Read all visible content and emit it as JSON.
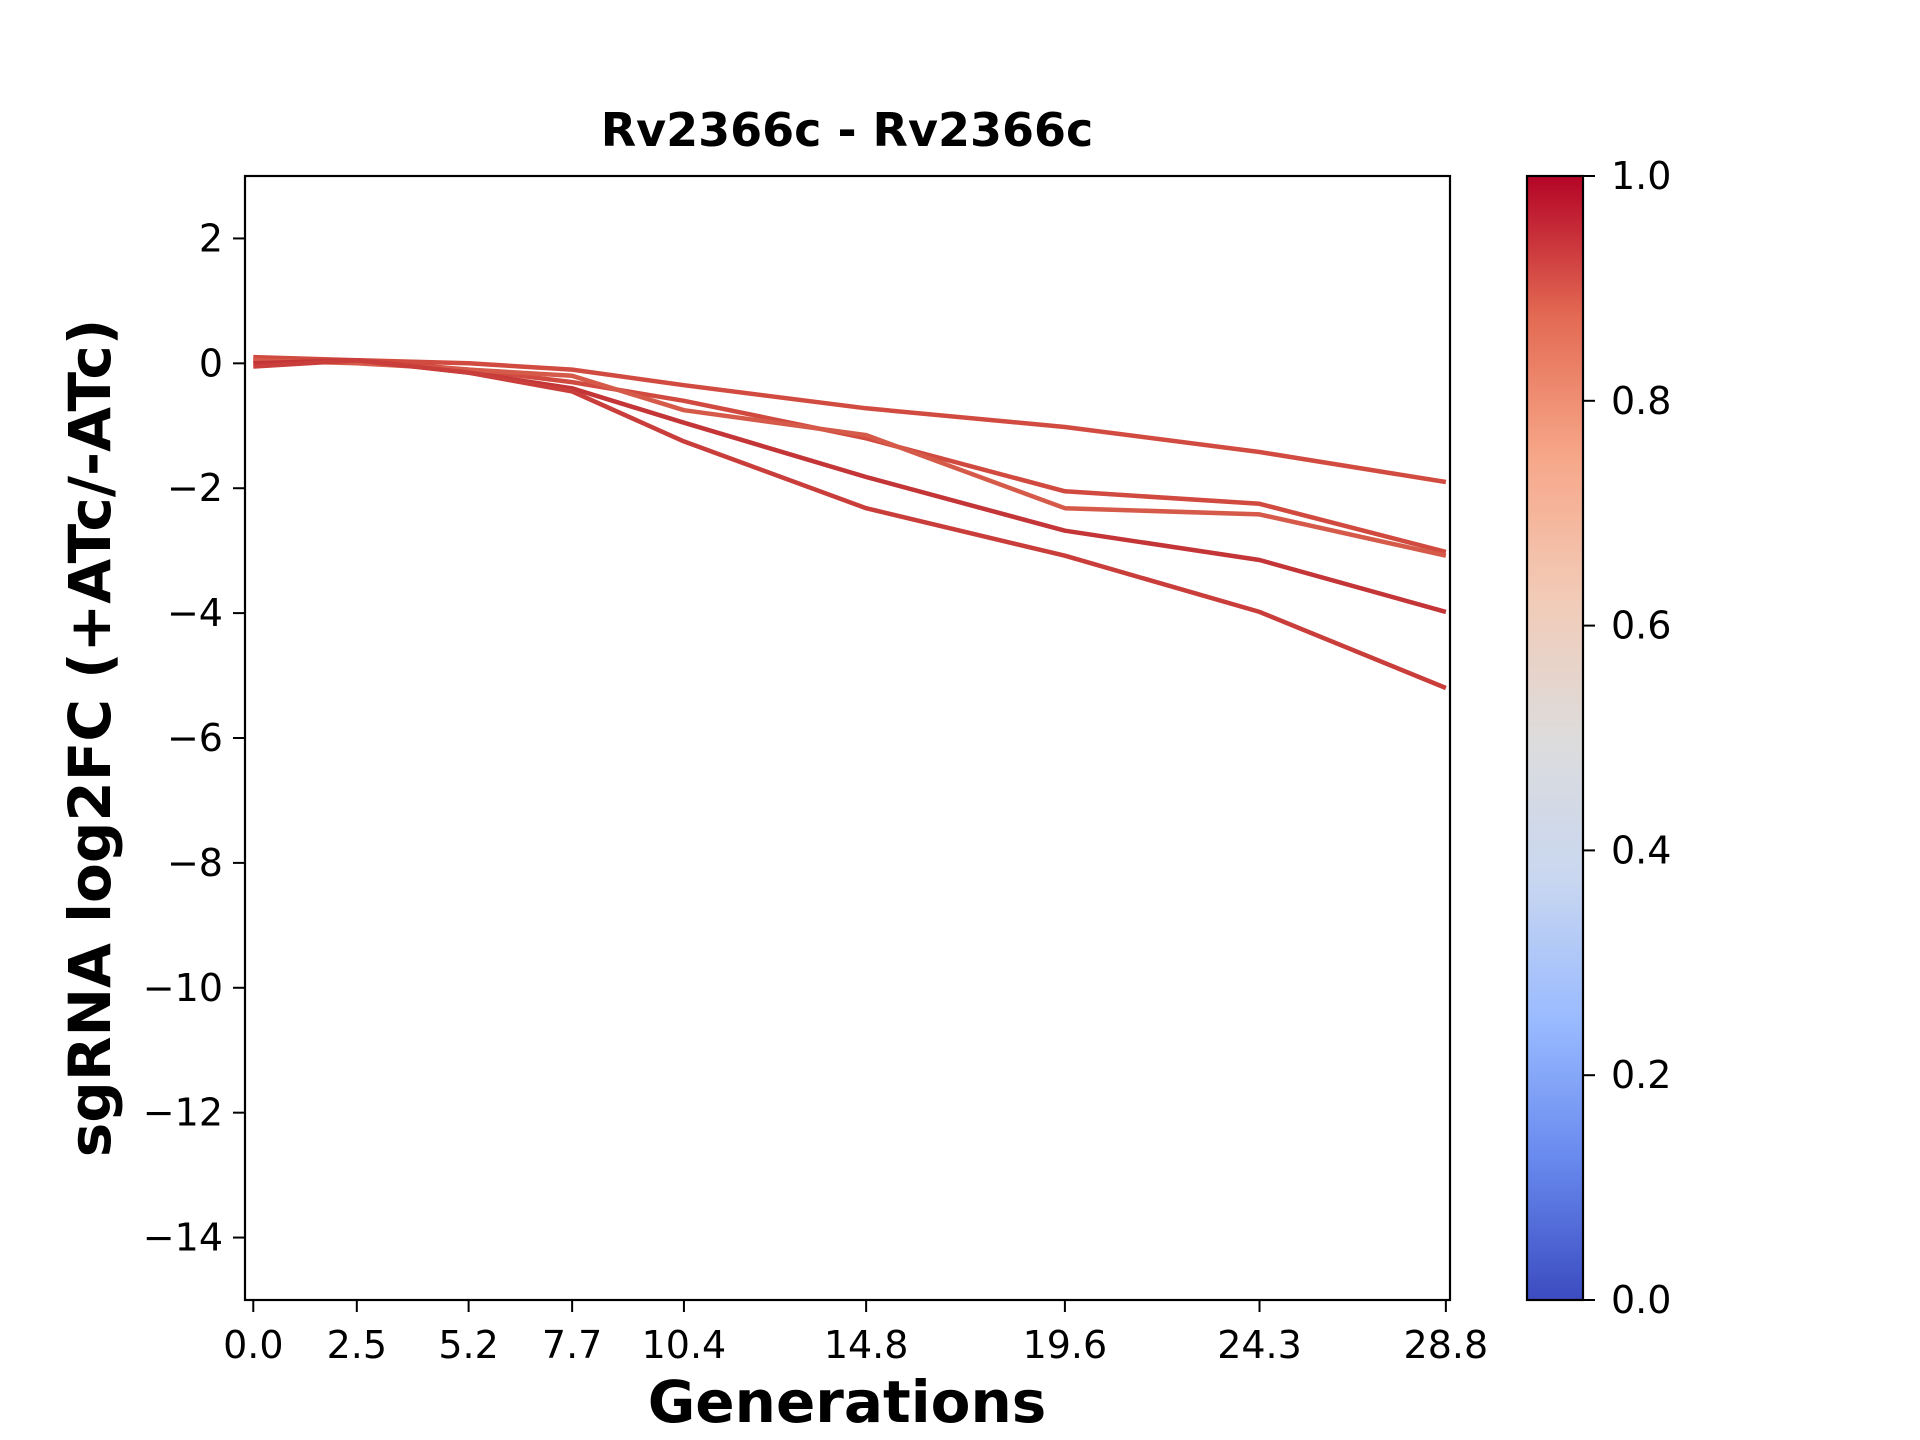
{
  "chart_data": {
    "type": "line",
    "title": "Rv2366c - Rv2366c",
    "xlabel": "Generations",
    "ylabel": "sgRNA log2FC (+ATc/-ATc)",
    "x": [
      0.0,
      2.5,
      5.2,
      7.7,
      10.4,
      14.8,
      19.6,
      24.3,
      28.8
    ],
    "x_tick_labels": [
      "0.0",
      "2.5",
      "5.2",
      "7.7",
      "10.4",
      "14.8",
      "19.6",
      "24.3",
      "28.8"
    ],
    "xlim": [
      -0.2,
      28.9
    ],
    "ylim": [
      -15,
      3
    ],
    "y_ticks": [
      2,
      0,
      -2,
      -4,
      -6,
      -8,
      -10,
      -12,
      -14
    ],
    "y_tick_labels": [
      "2",
      "0",
      "−2",
      "−4",
      "−6",
      "−8",
      "−10",
      "−12",
      "−14"
    ],
    "grid": false,
    "series": [
      {
        "values": [
          0.05,
          0.05,
          0.0,
          -0.1,
          -0.35,
          -0.72,
          -1.02,
          -1.42,
          -1.9
        ],
        "color": "#d24b40",
        "colorbar_value": 0.9
      },
      {
        "values": [
          0.1,
          0.05,
          -0.1,
          -0.3,
          -0.6,
          -1.2,
          -2.05,
          -2.25,
          -3.02
        ],
        "color": "#d14a3f",
        "colorbar_value": 0.9
      },
      {
        "values": [
          0.05,
          0.0,
          -0.1,
          -0.2,
          -0.75,
          -1.15,
          -2.32,
          -2.42,
          -3.08
        ],
        "color": "#d55a49",
        "colorbar_value": 0.88
      },
      {
        "values": [
          0.0,
          0.05,
          -0.15,
          -0.4,
          -0.95,
          -1.82,
          -2.68,
          -3.15,
          -3.98
        ],
        "color": "#c33537",
        "colorbar_value": 0.95
      },
      {
        "values": [
          -0.05,
          0.05,
          -0.15,
          -0.45,
          -1.25,
          -2.32,
          -3.08,
          -3.98,
          -5.2
        ],
        "color": "#c93d3a",
        "colorbar_value": 0.93
      }
    ],
    "colorbar": {
      "colormap": "coolwarm",
      "range": [
        0.0,
        1.0
      ],
      "ticks": [
        0.0,
        0.2,
        0.4,
        0.6,
        0.8,
        1.0
      ],
      "tick_labels": [
        "0.0",
        "0.2",
        "0.4",
        "0.6",
        "0.8",
        "1.0"
      ],
      "stops": [
        "#3b4cc0",
        "#6889ee",
        "#9abbff",
        "#c9d7f0",
        "#dddcdc",
        "#f2cbb7",
        "#f7a789",
        "#e36a53",
        "#b40426"
      ]
    }
  }
}
